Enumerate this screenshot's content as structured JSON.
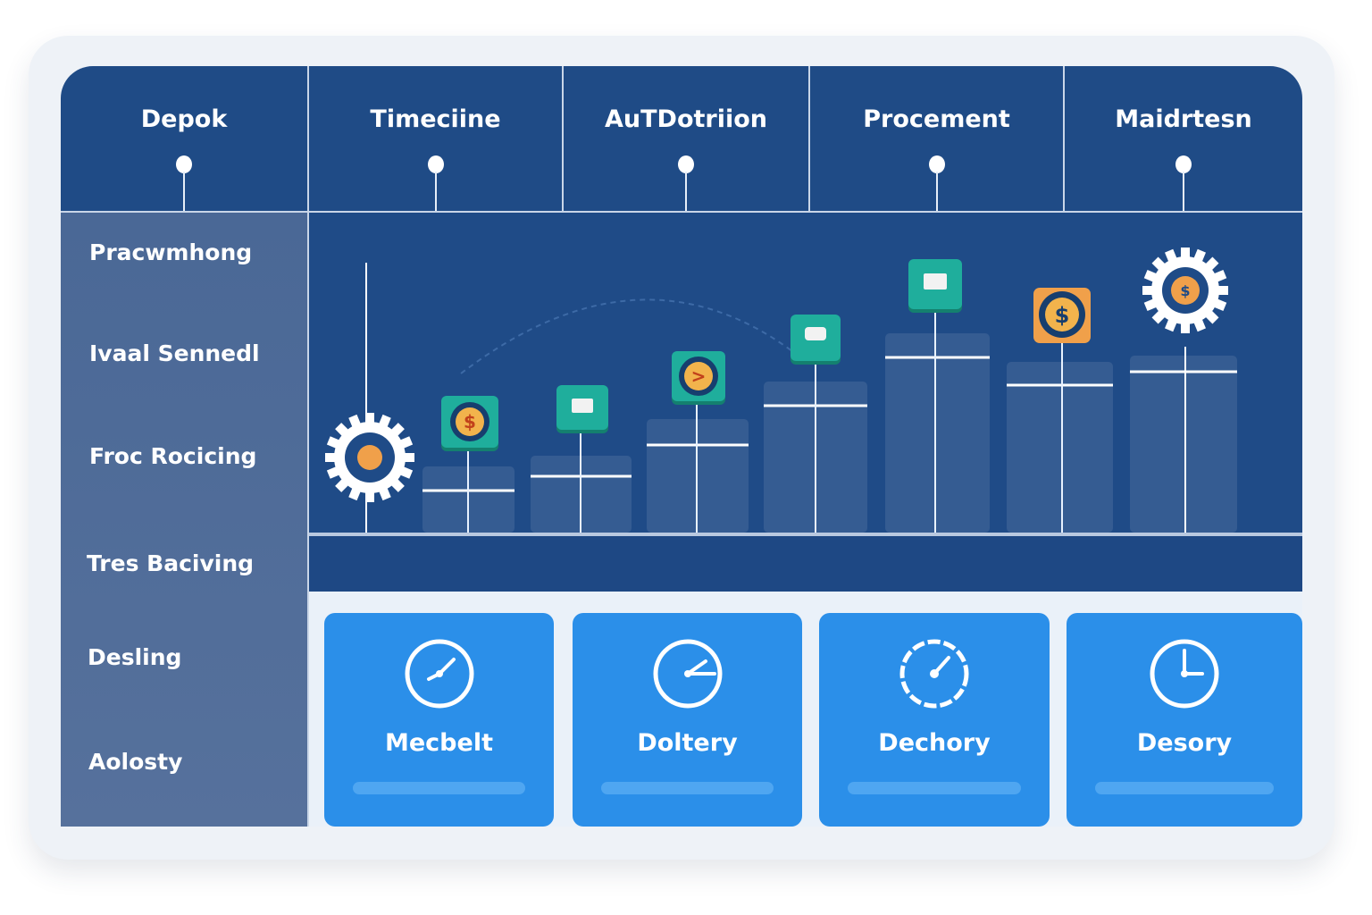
{
  "header": {
    "columns": [
      {
        "label": "Depok"
      },
      {
        "label": "Timeciine"
      },
      {
        "label": "AuTDotriion"
      },
      {
        "label": "Procement"
      },
      {
        "label": "Maidrtesn"
      }
    ]
  },
  "sidebar": {
    "items": [
      {
        "label": "Pracwmhong"
      },
      {
        "label": "Ivaal Sennedl"
      },
      {
        "label": "Froc Rocicing"
      },
      {
        "label": "Tres Baciving"
      },
      {
        "label": "Desling"
      },
      {
        "label": "Aolosty"
      }
    ]
  },
  "chart": {
    "markers": [
      "gear-icon",
      "dollar-icon",
      "monitor-icon",
      "chevron-right-icon",
      "monitor-icon",
      "book-icon",
      "dollar-icon",
      "gear-dollar-icon"
    ],
    "colors": {
      "teal": "#1fae9c",
      "orange": "#f0a04a",
      "coin": "#f2b34c",
      "bar": "#3a5f94"
    }
  },
  "cards": [
    {
      "label": "Mecbelt",
      "icon": "clock-icon"
    },
    {
      "label": "Doltery",
      "icon": "clock-icon"
    },
    {
      "label": "Dechory",
      "icon": "clock-icon"
    },
    {
      "label": "Desory",
      "icon": "clock-icon"
    }
  ],
  "colors": {
    "header": "#1f4b86",
    "sidebar": "#4e6c98",
    "card": "#2b8fe9"
  }
}
